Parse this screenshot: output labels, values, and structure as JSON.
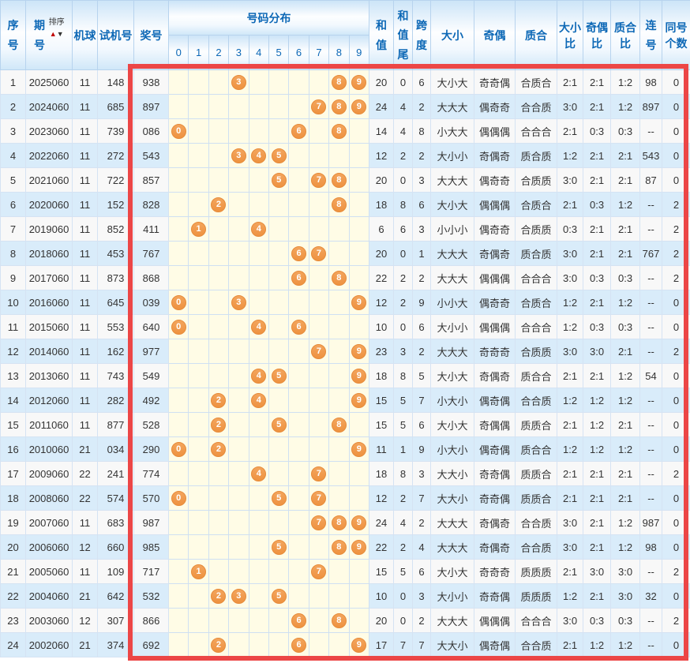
{
  "headers": {
    "seq": "序号",
    "period": "期号",
    "sort": "排序",
    "sort_up": "▲",
    "sort_down": "▼",
    "machine": "机球",
    "test": "试机号",
    "prize": "奖号",
    "distribution": "号码分布",
    "digits": [
      "0",
      "1",
      "2",
      "3",
      "4",
      "5",
      "6",
      "7",
      "8",
      "9"
    ],
    "sum": "和值",
    "sum_tail": "和值尾",
    "span": "跨度",
    "size": "大小",
    "parity": "奇偶",
    "prime": "质合",
    "size_ratio": "大小比",
    "parity_ratio": "奇偶比",
    "prime_ratio": "质合比",
    "consecutive": "连号",
    "same_count": "同号个数"
  },
  "colors": {
    "header_text_blue": "#0d68b6",
    "row_alt_blue": "#d9ecfa",
    "row_base": "#f8f8f8",
    "distribution_yellow": "#fffce6",
    "ball_orange": "#ee9240",
    "frame_red": "#ec4646",
    "sort_up_red": "#c00000"
  },
  "rows": [
    {
      "seq": "1",
      "period": "2025060",
      "machine": "11",
      "test": "148",
      "prize": "938",
      "balls": [
        3,
        8,
        9
      ],
      "sum": "20",
      "tail": "0",
      "span": "6",
      "size": "大小大",
      "parity": "奇奇偶",
      "prime": "合质合",
      "size_ratio": "2:1",
      "parity_ratio": "2:1",
      "prime_ratio": "1:2",
      "consec": "98",
      "same": "0"
    },
    {
      "seq": "2",
      "period": "2024060",
      "machine": "11",
      "test": "685",
      "prize": "897",
      "balls": [
        7,
        8,
        9
      ],
      "sum": "24",
      "tail": "4",
      "span": "2",
      "size": "大大大",
      "parity": "偶奇奇",
      "prime": "合合质",
      "size_ratio": "3:0",
      "parity_ratio": "2:1",
      "prime_ratio": "1:2",
      "consec": "897",
      "same": "0"
    },
    {
      "seq": "3",
      "period": "2023060",
      "machine": "11",
      "test": "739",
      "prize": "086",
      "balls": [
        0,
        6,
        8
      ],
      "sum": "14",
      "tail": "4",
      "span": "8",
      "size": "小大大",
      "parity": "偶偶偶",
      "prime": "合合合",
      "size_ratio": "2:1",
      "parity_ratio": "0:3",
      "prime_ratio": "0:3",
      "consec": "--",
      "same": "0"
    },
    {
      "seq": "4",
      "period": "2022060",
      "machine": "11",
      "test": "272",
      "prize": "543",
      "balls": [
        3,
        4,
        5
      ],
      "sum": "12",
      "tail": "2",
      "span": "2",
      "size": "大小小",
      "parity": "奇偶奇",
      "prime": "质合质",
      "size_ratio": "1:2",
      "parity_ratio": "2:1",
      "prime_ratio": "2:1",
      "consec": "543",
      "same": "0"
    },
    {
      "seq": "5",
      "period": "2021060",
      "machine": "11",
      "test": "722",
      "prize": "857",
      "balls": [
        5,
        7,
        8
      ],
      "sum": "20",
      "tail": "0",
      "span": "3",
      "size": "大大大",
      "parity": "偶奇奇",
      "prime": "合质质",
      "size_ratio": "3:0",
      "parity_ratio": "2:1",
      "prime_ratio": "2:1",
      "consec": "87",
      "same": "0"
    },
    {
      "seq": "6",
      "period": "2020060",
      "machine": "11",
      "test": "152",
      "prize": "828",
      "balls": [
        2,
        8
      ],
      "sum": "18",
      "tail": "8",
      "span": "6",
      "size": "大小大",
      "parity": "偶偶偶",
      "prime": "合质合",
      "size_ratio": "2:1",
      "parity_ratio": "0:3",
      "prime_ratio": "1:2",
      "consec": "--",
      "same": "2"
    },
    {
      "seq": "7",
      "period": "2019060",
      "machine": "11",
      "test": "852",
      "prize": "411",
      "balls": [
        1,
        4
      ],
      "sum": "6",
      "tail": "6",
      "span": "3",
      "size": "小小小",
      "parity": "偶奇奇",
      "prime": "合质质",
      "size_ratio": "0:3",
      "parity_ratio": "2:1",
      "prime_ratio": "2:1",
      "consec": "--",
      "same": "2"
    },
    {
      "seq": "8",
      "period": "2018060",
      "machine": "11",
      "test": "453",
      "prize": "767",
      "balls": [
        6,
        7
      ],
      "sum": "20",
      "tail": "0",
      "span": "1",
      "size": "大大大",
      "parity": "奇偶奇",
      "prime": "质合质",
      "size_ratio": "3:0",
      "parity_ratio": "2:1",
      "prime_ratio": "2:1",
      "consec": "767",
      "same": "2"
    },
    {
      "seq": "9",
      "period": "2017060",
      "machine": "11",
      "test": "873",
      "prize": "868",
      "balls": [
        6,
        8
      ],
      "sum": "22",
      "tail": "2",
      "span": "2",
      "size": "大大大",
      "parity": "偶偶偶",
      "prime": "合合合",
      "size_ratio": "3:0",
      "parity_ratio": "0:3",
      "prime_ratio": "0:3",
      "consec": "--",
      "same": "2"
    },
    {
      "seq": "10",
      "period": "2016060",
      "machine": "11",
      "test": "645",
      "prize": "039",
      "balls": [
        0,
        3,
        9
      ],
      "sum": "12",
      "tail": "2",
      "span": "9",
      "size": "小小大",
      "parity": "偶奇奇",
      "prime": "合质合",
      "size_ratio": "1:2",
      "parity_ratio": "2:1",
      "prime_ratio": "1:2",
      "consec": "--",
      "same": "0"
    },
    {
      "seq": "11",
      "period": "2015060",
      "machine": "11",
      "test": "553",
      "prize": "640",
      "balls": [
        0,
        4,
        6
      ],
      "sum": "10",
      "tail": "0",
      "span": "6",
      "size": "大小小",
      "parity": "偶偶偶",
      "prime": "合合合",
      "size_ratio": "1:2",
      "parity_ratio": "0:3",
      "prime_ratio": "0:3",
      "consec": "--",
      "same": "0"
    },
    {
      "seq": "12",
      "period": "2014060",
      "machine": "11",
      "test": "162",
      "prize": "977",
      "balls": [
        7,
        9
      ],
      "sum": "23",
      "tail": "3",
      "span": "2",
      "size": "大大大",
      "parity": "奇奇奇",
      "prime": "合质质",
      "size_ratio": "3:0",
      "parity_ratio": "3:0",
      "prime_ratio": "2:1",
      "consec": "--",
      "same": "2"
    },
    {
      "seq": "13",
      "period": "2013060",
      "machine": "11",
      "test": "743",
      "prize": "549",
      "balls": [
        4,
        5,
        9
      ],
      "sum": "18",
      "tail": "8",
      "span": "5",
      "size": "大小大",
      "parity": "奇偶奇",
      "prime": "质合合",
      "size_ratio": "2:1",
      "parity_ratio": "2:1",
      "prime_ratio": "1:2",
      "consec": "54",
      "same": "0"
    },
    {
      "seq": "14",
      "period": "2012060",
      "machine": "11",
      "test": "282",
      "prize": "492",
      "balls": [
        2,
        4,
        9
      ],
      "sum": "15",
      "tail": "5",
      "span": "7",
      "size": "小大小",
      "parity": "偶奇偶",
      "prime": "合合质",
      "size_ratio": "1:2",
      "parity_ratio": "1:2",
      "prime_ratio": "1:2",
      "consec": "--",
      "same": "0"
    },
    {
      "seq": "15",
      "period": "2011060",
      "machine": "11",
      "test": "877",
      "prize": "528",
      "balls": [
        2,
        5,
        8
      ],
      "sum": "15",
      "tail": "5",
      "span": "6",
      "size": "大小大",
      "parity": "奇偶偶",
      "prime": "质质合",
      "size_ratio": "2:1",
      "parity_ratio": "1:2",
      "prime_ratio": "2:1",
      "consec": "--",
      "same": "0"
    },
    {
      "seq": "16",
      "period": "2010060",
      "machine": "21",
      "test": "034",
      "prize": "290",
      "balls": [
        0,
        2,
        9
      ],
      "sum": "11",
      "tail": "1",
      "span": "9",
      "size": "小大小",
      "parity": "偶奇偶",
      "prime": "质合合",
      "size_ratio": "1:2",
      "parity_ratio": "1:2",
      "prime_ratio": "1:2",
      "consec": "--",
      "same": "0"
    },
    {
      "seq": "17",
      "period": "2009060",
      "machine": "22",
      "test": "241",
      "prize": "774",
      "balls": [
        4,
        7
      ],
      "sum": "18",
      "tail": "8",
      "span": "3",
      "size": "大大小",
      "parity": "奇奇偶",
      "prime": "质质合",
      "size_ratio": "2:1",
      "parity_ratio": "2:1",
      "prime_ratio": "2:1",
      "consec": "--",
      "same": "2"
    },
    {
      "seq": "18",
      "period": "2008060",
      "machine": "22",
      "test": "574",
      "prize": "570",
      "balls": [
        0,
        5,
        7
      ],
      "sum": "12",
      "tail": "2",
      "span": "7",
      "size": "大大小",
      "parity": "奇奇偶",
      "prime": "质质合",
      "size_ratio": "2:1",
      "parity_ratio": "2:1",
      "prime_ratio": "2:1",
      "consec": "--",
      "same": "0"
    },
    {
      "seq": "19",
      "period": "2007060",
      "machine": "11",
      "test": "683",
      "prize": "987",
      "balls": [
        7,
        8,
        9
      ],
      "sum": "24",
      "tail": "4",
      "span": "2",
      "size": "大大大",
      "parity": "奇偶奇",
      "prime": "合合质",
      "size_ratio": "3:0",
      "parity_ratio": "2:1",
      "prime_ratio": "1:2",
      "consec": "987",
      "same": "0"
    },
    {
      "seq": "20",
      "period": "2006060",
      "machine": "12",
      "test": "660",
      "prize": "985",
      "balls": [
        5,
        8,
        9
      ],
      "sum": "22",
      "tail": "2",
      "span": "4",
      "size": "大大大",
      "parity": "奇偶奇",
      "prime": "合合质",
      "size_ratio": "3:0",
      "parity_ratio": "2:1",
      "prime_ratio": "1:2",
      "consec": "98",
      "same": "0"
    },
    {
      "seq": "21",
      "period": "2005060",
      "machine": "11",
      "test": "109",
      "prize": "717",
      "balls": [
        1,
        7
      ],
      "sum": "15",
      "tail": "5",
      "span": "6",
      "size": "大小大",
      "parity": "奇奇奇",
      "prime": "质质质",
      "size_ratio": "2:1",
      "parity_ratio": "3:0",
      "prime_ratio": "3:0",
      "consec": "--",
      "same": "2"
    },
    {
      "seq": "22",
      "period": "2004060",
      "machine": "21",
      "test": "642",
      "prize": "532",
      "balls": [
        2,
        3,
        5
      ],
      "sum": "10",
      "tail": "0",
      "span": "3",
      "size": "大小小",
      "parity": "奇奇偶",
      "prime": "质质质",
      "size_ratio": "1:2",
      "parity_ratio": "2:1",
      "prime_ratio": "3:0",
      "consec": "32",
      "same": "0"
    },
    {
      "seq": "23",
      "period": "2003060",
      "machine": "12",
      "test": "307",
      "prize": "866",
      "balls": [
        6,
        8
      ],
      "sum": "20",
      "tail": "0",
      "span": "2",
      "size": "大大大",
      "parity": "偶偶偶",
      "prime": "合合合",
      "size_ratio": "3:0",
      "parity_ratio": "0:3",
      "prime_ratio": "0:3",
      "consec": "--",
      "same": "2"
    },
    {
      "seq": "24",
      "period": "2002060",
      "machine": "21",
      "test": "374",
      "prize": "692",
      "balls": [
        2,
        6,
        9
      ],
      "sum": "17",
      "tail": "7",
      "span": "7",
      "size": "大大小",
      "parity": "偶奇偶",
      "prime": "合合质",
      "size_ratio": "2:1",
      "parity_ratio": "1:2",
      "prime_ratio": "1:2",
      "consec": "--",
      "same": "0"
    }
  ]
}
